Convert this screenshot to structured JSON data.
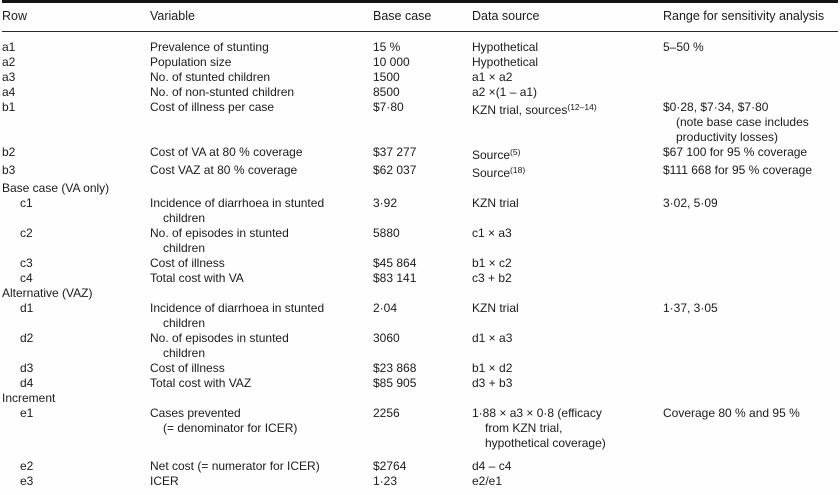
{
  "table": {
    "columns": [
      {
        "key": "row",
        "label": "Row"
      },
      {
        "key": "variable",
        "label": "Variable"
      },
      {
        "key": "base",
        "label": "Base case"
      },
      {
        "key": "source",
        "label": "Data source"
      },
      {
        "key": "range",
        "label": "Range for sensitivity analysis"
      }
    ],
    "rows": [
      {
        "type": "data",
        "id": "a1",
        "indent": false,
        "variable": [
          {
            "t": "Prevalence of stunting"
          }
        ],
        "base": [
          {
            "t": "15 %"
          }
        ],
        "source": [
          {
            "t": "Hypothetical"
          }
        ],
        "range": [
          {
            "t": "5–50 %"
          }
        ]
      },
      {
        "type": "data",
        "id": "a2",
        "indent": false,
        "variable": [
          {
            "t": "Population size"
          }
        ],
        "base": [
          {
            "t": "10 000"
          }
        ],
        "source": [
          {
            "t": "Hypothetical"
          }
        ],
        "range": []
      },
      {
        "type": "data",
        "id": "a3",
        "indent": false,
        "variable": [
          {
            "t": "No. of stunted children"
          }
        ],
        "base": [
          {
            "t": "1500"
          }
        ],
        "source": [
          {
            "t": "a1 × a2"
          }
        ],
        "range": []
      },
      {
        "type": "data",
        "id": "a4",
        "indent": false,
        "variable": [
          {
            "t": "No. of non-stunted children"
          }
        ],
        "base": [
          {
            "t": "8500"
          }
        ],
        "source": [
          {
            "t": "a2 ×(1 – a1)"
          }
        ],
        "range": []
      },
      {
        "type": "data",
        "id": "b1",
        "indent": false,
        "variable": [
          {
            "t": "Cost of illness per case"
          }
        ],
        "base": [
          {
            "t": "$7·80"
          }
        ],
        "source": [
          {
            "t": "KZN trial, sources",
            "sup": "(12–14)"
          }
        ],
        "range": [
          {
            "t": "$0·28, $7·34, $7·80"
          },
          {
            "t": "(note base case includes",
            "ind": true
          },
          {
            "t": "productivity losses)",
            "ind": true
          }
        ]
      },
      {
        "type": "data",
        "id": "b2",
        "indent": false,
        "variable": [
          {
            "t": "Cost of VA at 80 % coverage"
          }
        ],
        "base": [
          {
            "t": "$37 277"
          }
        ],
        "source": [
          {
            "t": "Source",
            "sup": "(5)"
          }
        ],
        "range": [
          {
            "t": "$67 100 for 95 % coverage"
          }
        ]
      },
      {
        "type": "data",
        "id": "b3",
        "indent": false,
        "variable": [
          {
            "t": "Cost VAZ at 80 % coverage"
          }
        ],
        "base": [
          {
            "t": "$62 037"
          }
        ],
        "source": [
          {
            "t": "Source",
            "sup": "(18)"
          }
        ],
        "range": [
          {
            "t": "$111 668 for 95 % coverage"
          }
        ]
      },
      {
        "type": "section",
        "label": "Base case (VA only)"
      },
      {
        "type": "data",
        "id": "c1",
        "indent": true,
        "variable": [
          {
            "t": "Incidence of diarrhoea in stunted"
          },
          {
            "t": "children",
            "ind": true
          }
        ],
        "base": [
          {
            "t": "3·92"
          }
        ],
        "source": [
          {
            "t": "KZN trial"
          }
        ],
        "range": [
          {
            "t": "3·02, 5·09"
          }
        ]
      },
      {
        "type": "data",
        "id": "c2",
        "indent": true,
        "variable": [
          {
            "t": "No. of episodes in stunted"
          },
          {
            "t": "children",
            "ind": true
          }
        ],
        "base": [
          {
            "t": "5880"
          }
        ],
        "source": [
          {
            "t": "c1 × a3"
          }
        ],
        "range": []
      },
      {
        "type": "data",
        "id": "c3",
        "indent": true,
        "variable": [
          {
            "t": "Cost of illness"
          }
        ],
        "base": [
          {
            "t": "$45 864"
          }
        ],
        "source": [
          {
            "t": "b1 × c2"
          }
        ],
        "range": []
      },
      {
        "type": "data",
        "id": "c4",
        "indent": true,
        "variable": [
          {
            "t": "Total cost with VA"
          }
        ],
        "base": [
          {
            "t": "$83 141"
          }
        ],
        "source": [
          {
            "t": "c3 + b2"
          }
        ],
        "range": []
      },
      {
        "type": "section",
        "label": "Alternative (VAZ)"
      },
      {
        "type": "data",
        "id": "d1",
        "indent": true,
        "variable": [
          {
            "t": "Incidence of diarrhoea in stunted"
          },
          {
            "t": "children",
            "ind": true
          }
        ],
        "base": [
          {
            "t": "2·04"
          }
        ],
        "source": [
          {
            "t": "KZN trial"
          }
        ],
        "range": [
          {
            "t": "1·37, 3·05"
          }
        ]
      },
      {
        "type": "data",
        "id": "d2",
        "indent": true,
        "variable": [
          {
            "t": "No. of episodes in stunted"
          },
          {
            "t": "children",
            "ind": true
          }
        ],
        "base": [
          {
            "t": "3060"
          }
        ],
        "source": [
          {
            "t": "d1 × a3"
          }
        ],
        "range": []
      },
      {
        "type": "data",
        "id": "d3",
        "indent": true,
        "variable": [
          {
            "t": "Cost of illness"
          }
        ],
        "base": [
          {
            "t": "$23 868"
          }
        ],
        "source": [
          {
            "t": "b1 × d2"
          }
        ],
        "range": []
      },
      {
        "type": "data",
        "id": "d4",
        "indent": true,
        "variable": [
          {
            "t": "Total cost with VAZ"
          }
        ],
        "base": [
          {
            "t": "$85 905"
          }
        ],
        "source": [
          {
            "t": "d3 + b3"
          }
        ],
        "range": []
      },
      {
        "type": "section",
        "label": "Increment"
      },
      {
        "type": "data",
        "id": "e1",
        "indent": true,
        "variable": [
          {
            "t": "Cases prevented"
          },
          {
            "t": "(= denominator for ICER)",
            "ind": true
          }
        ],
        "base": [
          {
            "t": "2256"
          }
        ],
        "source": [
          {
            "t": "1·88 × a3 × 0·8 (efficacy"
          },
          {
            "t": "from KZN trial,",
            "ind": true
          },
          {
            "t": "hypothetical coverage)",
            "ind": true
          }
        ],
        "range": [
          {
            "t": "Coverage 80 % and 95 %"
          }
        ]
      },
      {
        "type": "data",
        "id": "e2",
        "indent": true,
        "variable": [
          {
            "t": "Net cost (= numerator for ICER)"
          }
        ],
        "base": [
          {
            "t": "$2764"
          }
        ],
        "source": [
          {
            "t": "d4 – c4"
          }
        ],
        "range": []
      },
      {
        "type": "data",
        "id": "e3",
        "indent": true,
        "variable": [
          {
            "t": "ICER"
          }
        ],
        "base": [
          {
            "t": "1·23"
          }
        ],
        "source": [
          {
            "t": "e2/e1"
          }
        ],
        "range": []
      }
    ]
  }
}
